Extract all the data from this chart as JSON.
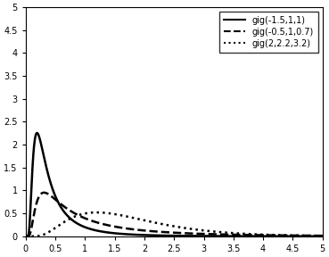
{
  "curves": [
    {
      "label": "gig(-1.5,1,1)",
      "lambda": -1.5,
      "chi": 1.0,
      "psi": 1.0,
      "linestyle": "solid",
      "linewidth": 1.8,
      "color": "#000000"
    },
    {
      "label": "gig(-0.5,1,0.7)",
      "lambda": -0.5,
      "chi": 1.0,
      "psi": 0.7,
      "linestyle": "dashed",
      "linewidth": 1.8,
      "color": "#000000"
    },
    {
      "label": "gig(2,2.2,3.2)",
      "lambda": 2.0,
      "chi": 2.2,
      "psi": 3.2,
      "linestyle": "dotted",
      "linewidth": 1.8,
      "color": "#000000"
    }
  ],
  "xlim": [
    0,
    5
  ],
  "ylim": [
    0,
    5
  ],
  "xticks": [
    0,
    0.5,
    1,
    1.5,
    2,
    2.5,
    3,
    3.5,
    4,
    4.5,
    5
  ],
  "yticks": [
    0,
    0.5,
    1,
    1.5,
    2,
    2.5,
    3,
    3.5,
    4,
    4.5,
    5
  ],
  "legend_labels": [
    "gig(-1.5,1,1)",
    "gig(-0.5,1,0.7)",
    "gig(2,2.2,3.2)"
  ],
  "legend_linestyles": [
    "solid",
    "dashed",
    "dotted"
  ],
  "background_color": "#ffffff",
  "x_start": 0.001,
  "x_end": 5.0,
  "n_points": 3000
}
